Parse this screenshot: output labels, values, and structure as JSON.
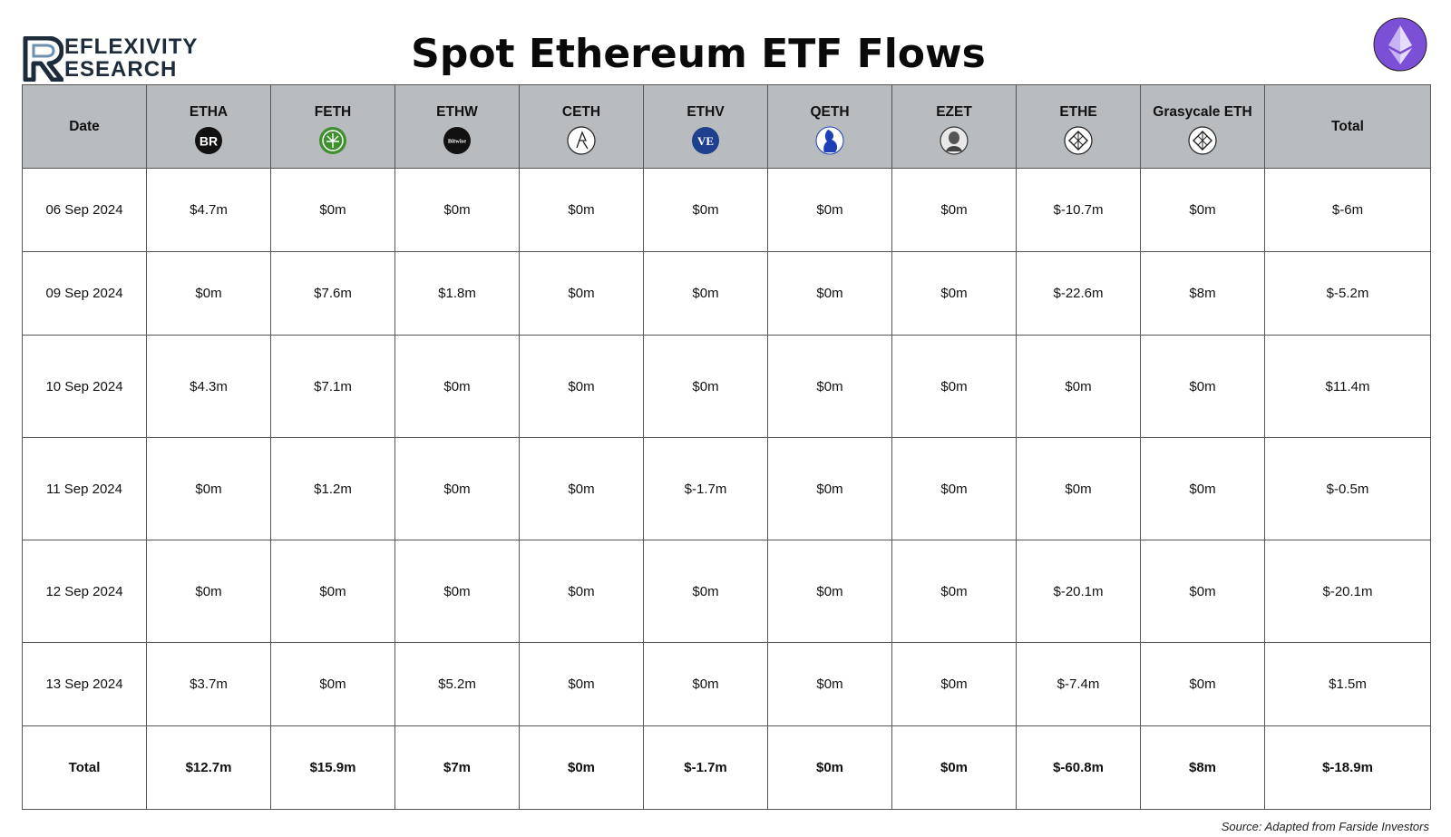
{
  "brand": {
    "line1": "EFLEXIVITY",
    "line2": "ESEARCH",
    "accent": "#1d2b3a"
  },
  "title": "Spot Ethereum ETF Flows",
  "header": {
    "date": "Date",
    "etha": "ETHA",
    "feth": "FETH",
    "ethw": "ETHW",
    "ceth": "CETH",
    "ethv": "ETHV",
    "qeth": "QETH",
    "ezet": "EZET",
    "ethe": "ETHE",
    "grayscale": "Grasycale ETH",
    "total": "Total"
  },
  "icons": {
    "etha": "blackrock-icon",
    "feth": "fidelity-icon",
    "ethw": "bitwise-icon",
    "ceth": "21shares-icon",
    "ethv": "vaneck-icon",
    "qeth": "invesco-icon",
    "ezet": "franklin-icon",
    "ethe": "grayscale-icon",
    "grayscale": "grayscale-icon",
    "bitwise_text": "Bitwise"
  },
  "rows": [
    {
      "date": "06 Sep 2024",
      "etha": "$4.7m",
      "feth": "$0m",
      "ethw": "$0m",
      "ceth": "$0m",
      "ethv": "$0m",
      "qeth": "$0m",
      "ezet": "$0m",
      "ethe": "$-10.7m",
      "grayscale": "$0m",
      "total": "$-6m"
    },
    {
      "date": "09 Sep 2024",
      "etha": "$0m",
      "feth": "$7.6m",
      "ethw": "$1.8m",
      "ceth": "$0m",
      "ethv": "$0m",
      "qeth": "$0m",
      "ezet": "$0m",
      "ethe": "$-22.6m",
      "grayscale": "$8m",
      "total": "$-5.2m"
    },
    {
      "date": "10 Sep 2024",
      "etha": "$4.3m",
      "feth": "$7.1m",
      "ethw": "$0m",
      "ceth": "$0m",
      "ethv": "$0m",
      "qeth": "$0m",
      "ezet": "$0m",
      "ethe": "$0m",
      "grayscale": "$0m",
      "total": "$11.4m"
    },
    {
      "date": "11 Sep 2024",
      "etha": "$0m",
      "feth": "$1.2m",
      "ethw": "$0m",
      "ceth": "$0m",
      "ethv": "$-1.7m",
      "qeth": "$0m",
      "ezet": "$0m",
      "ethe": "$0m",
      "grayscale": "$0m",
      "total": "$-0.5m"
    },
    {
      "date": "12 Sep 2024",
      "etha": "$0m",
      "feth": "$0m",
      "ethw": "$0m",
      "ceth": "$0m",
      "ethv": "$0m",
      "qeth": "$0m",
      "ezet": "$0m",
      "ethe": "$-20.1m",
      "grayscale": "$0m",
      "total": "$-20.1m"
    },
    {
      "date": "13 Sep 2024",
      "etha": "$3.7m",
      "feth": "$0m",
      "ethw": "$5.2m",
      "ceth": "$0m",
      "ethv": "$0m",
      "qeth": "$0m",
      "ezet": "$0m",
      "ethe": "$-7.4m",
      "grayscale": "$0m",
      "total": "$1.5m"
    }
  ],
  "totals": {
    "label": "Total",
    "etha": "$12.7m",
    "feth": "$15.9m",
    "ethw": "$7m",
    "ceth": "$0m",
    "ethv": "$-1.7m",
    "qeth": "$0m",
    "ezet": "$0m",
    "ethe": "$-60.8m",
    "grayscale": "$8m",
    "total": "$-18.9m"
  },
  "source": "Source: Adapted from Farside Investors",
  "colors": {
    "header_bg": "#b8bcbf",
    "eth_badge": "#7b4fd6",
    "fidelity": "#3f8f2f",
    "vaneck": "#1f3f8f",
    "invesco": "#1d3fb8"
  }
}
